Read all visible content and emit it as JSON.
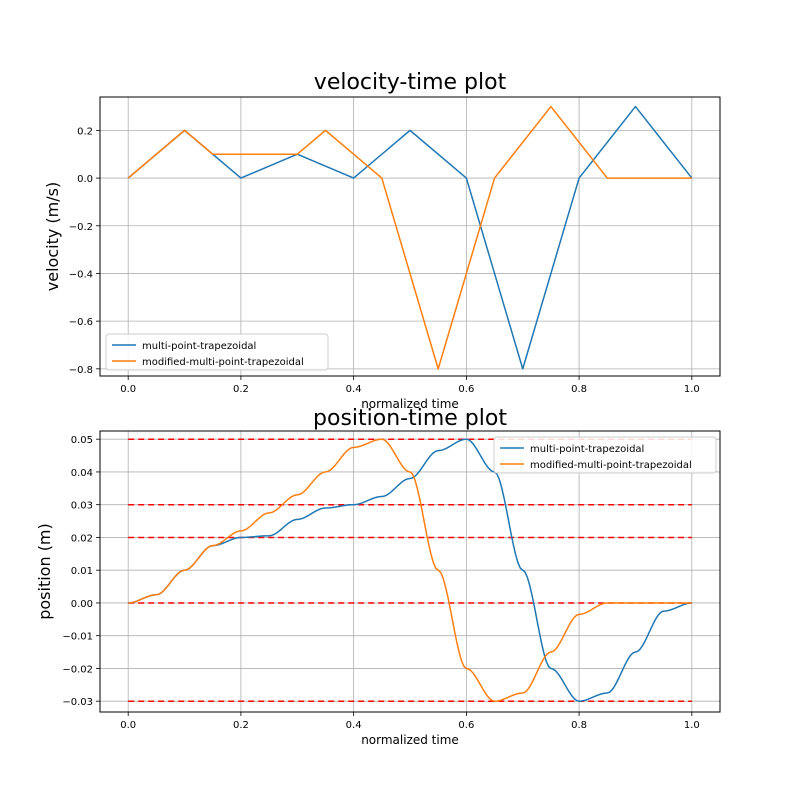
{
  "chart_data": [
    {
      "type": "line",
      "title": "velocity-time plot",
      "xlabel": "normalized time",
      "ylabel": "velocity (m/s)",
      "xlim": [
        -0.05,
        1.05
      ],
      "ylim": [
        -0.83,
        0.34
      ],
      "xticks": [
        0.0,
        0.2,
        0.4,
        0.6,
        0.8,
        1.0
      ],
      "xtick_labels": [
        "0.0",
        "0.2",
        "0.4",
        "0.6",
        "0.8",
        "1.0"
      ],
      "yticks": [
        -0.8,
        -0.6,
        -0.4,
        -0.2,
        0.0,
        0.2
      ],
      "ytick_labels": [
        "−0.8",
        "−0.6",
        "−0.4",
        "−0.2",
        "0.0",
        "0.2"
      ],
      "grid": true,
      "legend_position": "lower-left",
      "series": [
        {
          "name": "multi-point-trapezoidal",
          "color": "#1f77b4",
          "x": [
            0.0,
            0.1,
            0.2,
            0.3,
            0.4,
            0.5,
            0.6,
            0.7,
            0.8,
            0.9,
            1.0
          ],
          "y": [
            0.0,
            0.2,
            0.0,
            0.1,
            0.0,
            0.2,
            0.0,
            -0.8,
            0.0,
            0.3,
            0.0
          ]
        },
        {
          "name": "modified-multi-point-trapezoidal",
          "color": "#ff7f0e",
          "x": [
            0.0,
            0.1,
            0.15,
            0.2,
            0.3,
            0.35,
            0.4,
            0.45,
            0.55,
            0.65,
            0.75,
            0.85,
            0.9,
            1.0
          ],
          "y": [
            0.0,
            0.2,
            0.1,
            0.1,
            0.1,
            0.2,
            0.1,
            0.0,
            -0.8,
            0.0,
            0.3,
            0.0,
            0.0,
            0.0
          ]
        }
      ]
    },
    {
      "type": "line",
      "title": "position-time plot",
      "xlabel": "normalized time",
      "ylabel": "position (m)",
      "xlim": [
        -0.05,
        1.05
      ],
      "ylim": [
        -0.0333,
        0.0525
      ],
      "xticks": [
        0.0,
        0.2,
        0.4,
        0.6,
        0.8,
        1.0
      ],
      "xtick_labels": [
        "0.0",
        "0.2",
        "0.4",
        "0.6",
        "0.8",
        "1.0"
      ],
      "yticks": [
        -0.03,
        -0.02,
        -0.01,
        0.0,
        0.01,
        0.02,
        0.03,
        0.04,
        0.05
      ],
      "ytick_labels": [
        "−0.03",
        "−0.02",
        "−0.01",
        "0.00",
        "0.01",
        "0.02",
        "0.03",
        "0.04",
        "0.05"
      ],
      "grid": true,
      "legend_position": "upper-right",
      "reference_lines": {
        "color": "#ff0000",
        "style": "dashed",
        "y": [
          0.05,
          0.03,
          0.02,
          0.0,
          -0.03
        ],
        "x_range": [
          0.0,
          1.0
        ]
      },
      "series": [
        {
          "name": "multi-point-trapezoidal",
          "color": "#1f77b4",
          "x": [
            0.0,
            0.05,
            0.1,
            0.15,
            0.2,
            0.25,
            0.3,
            0.35,
            0.4,
            0.45,
            0.5,
            0.55,
            0.6,
            0.65,
            0.7,
            0.75,
            0.8,
            0.85,
            0.9,
            0.95,
            1.0
          ],
          "y": [
            0.0,
            0.0025,
            0.01,
            0.0175,
            0.02,
            0.0205,
            0.0255,
            0.029,
            0.03,
            0.0325,
            0.038,
            0.0465,
            0.05,
            0.04,
            0.01,
            -0.02,
            -0.03,
            -0.0275,
            -0.015,
            -0.0025,
            0.0
          ]
        },
        {
          "name": "modified-multi-point-trapezoidal",
          "color": "#ff7f0e",
          "x": [
            0.0,
            0.05,
            0.1,
            0.15,
            0.2,
            0.25,
            0.3,
            0.35,
            0.4,
            0.45,
            0.5,
            0.55,
            0.6,
            0.65,
            0.7,
            0.75,
            0.8,
            0.85,
            0.9,
            0.95,
            1.0
          ],
          "y": [
            0.0,
            0.0025,
            0.01,
            0.0175,
            0.022,
            0.0275,
            0.033,
            0.04,
            0.0475,
            0.05,
            0.04,
            0.01,
            -0.02,
            -0.03,
            -0.0275,
            -0.015,
            -0.0035,
            0.0,
            0.0,
            0.0,
            0.0
          ]
        }
      ]
    }
  ]
}
